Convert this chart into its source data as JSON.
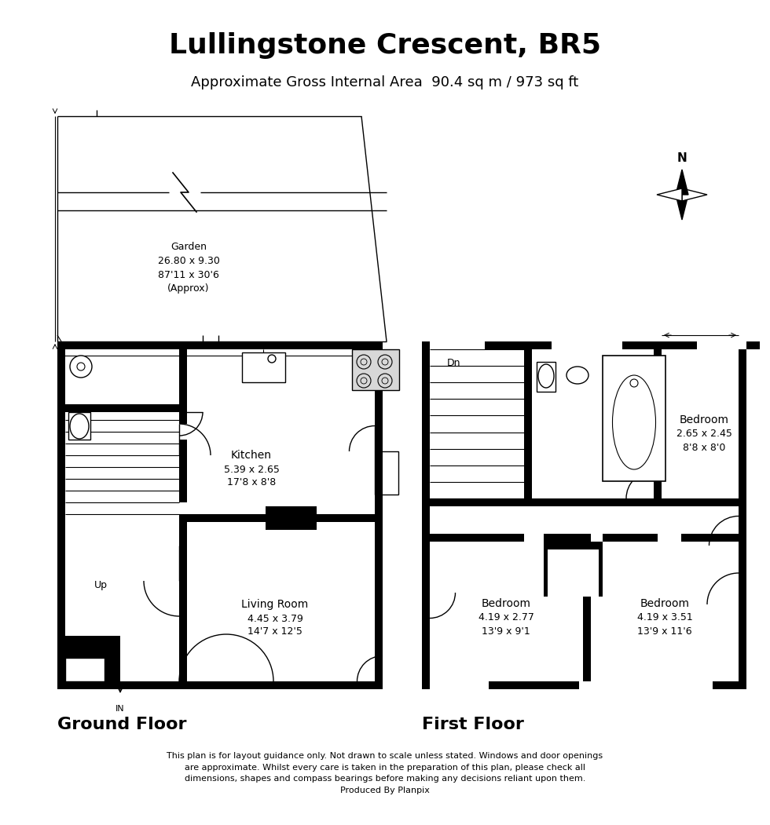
{
  "title": "Lullingstone Crescent, BR5",
  "subtitle": "Approximate Gross Internal Area  90.4 sq m / 973 sq ft",
  "ground_floor_label": "Ground Floor",
  "first_floor_label": "First Floor",
  "disclaimer": "This plan is for layout guidance only. Not drawn to scale unless stated. Windows and door openings\nare approximate. Whilst every care is taken in the preparation of this plan, please check all\ndimensions, shapes and compass bearings before making any decisions reliant upon them.\nProduced By Planpix",
  "bg_color": "#ffffff",
  "rooms": {
    "kitchen": {
      "label": "Kitchen",
      "dim1": "5.39 x 2.65",
      "dim2": "17'8 x 8'8"
    },
    "living_room": {
      "label": "Living Room",
      "dim1": "4.45 x 3.79",
      "dim2": "14'7 x 12'5"
    },
    "garden": {
      "label": "Garden",
      "dim1": "26.80 x 9.30",
      "dim2": "87'11 x 30'6",
      "dim3": "(Approx)"
    },
    "bedroom1": {
      "label": "Bedroom",
      "dim1": "2.65 x 2.45",
      "dim2": "8'8 x 8'0"
    },
    "bedroom2": {
      "label": "Bedroom",
      "dim1": "4.19 x 2.77",
      "dim2": "13'9 x 9'1"
    },
    "bedroom3": {
      "label": "Bedroom",
      "dim1": "4.19 x 3.51",
      "dim2": "13'9 x 11'6"
    }
  }
}
